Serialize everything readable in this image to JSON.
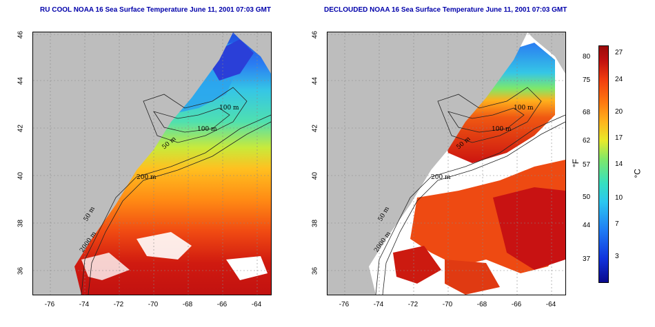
{
  "titles": {
    "left": "RU COOL NOAA 16 Sea Surface Temperature June 11, 2001 07:03 GMT",
    "right": "DECLOUDED NOAA 16 Sea Surface Temperature June 11, 2001 07:03 GMT"
  },
  "axes": {
    "lat_ticks": [
      "46",
      "44",
      "42",
      "40",
      "38",
      "36"
    ],
    "lon_ticks": [
      "-76",
      "-74",
      "-72",
      "-70",
      "-68",
      "-66",
      "-64"
    ]
  },
  "contour_labels": {
    "left": [
      "100 m",
      "100 m",
      "50 m",
      "200 m",
      "50 m",
      "2000 m"
    ],
    "right": [
      "100 m",
      "100 m",
      "50 m",
      "200 m",
      "50 m",
      "2000 m"
    ]
  },
  "colorbar": {
    "fahrenheit_ticks": [
      "80",
      "75",
      "68",
      "62",
      "57",
      "50",
      "44",
      "37"
    ],
    "celsius_ticks": [
      "27",
      "24",
      "20",
      "17",
      "14",
      "10",
      "7",
      "3"
    ],
    "fahrenheit_unit": "°F",
    "celsius_unit": "°C"
  },
  "colors": {
    "land": "#bdbdbd",
    "cloud": "#ffffff",
    "title": "#0000aa"
  }
}
